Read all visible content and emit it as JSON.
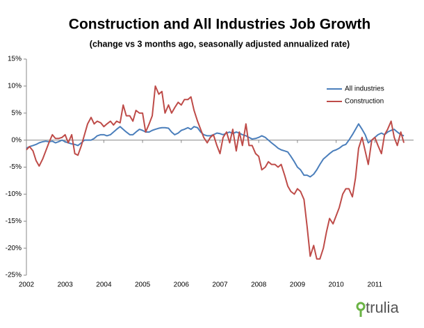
{
  "chart_data": {
    "type": "line",
    "title": "Construction and All Industries Job Growth",
    "subtitle": "(change vs 3 months ago, seasonally adjusted annualized rate)",
    "logo": "trulia",
    "x": [
      2002,
      2002.08,
      2002.17,
      2002.25,
      2002.33,
      2002.42,
      2002.5,
      2002.58,
      2002.67,
      2002.75,
      2002.83,
      2002.92,
      2003,
      2003.08,
      2003.17,
      2003.25,
      2003.33,
      2003.42,
      2003.5,
      2003.58,
      2003.67,
      2003.75,
      2003.83,
      2003.92,
      2004,
      2004.08,
      2004.17,
      2004.25,
      2004.33,
      2004.42,
      2004.5,
      2004.58,
      2004.67,
      2004.75,
      2004.83,
      2004.92,
      2005,
      2005.08,
      2005.17,
      2005.25,
      2005.33,
      2005.42,
      2005.5,
      2005.58,
      2005.67,
      2005.75,
      2005.83,
      2005.92,
      2006,
      2006.08,
      2006.17,
      2006.25,
      2006.33,
      2006.42,
      2006.5,
      2006.58,
      2006.67,
      2006.75,
      2006.83,
      2006.92,
      2007,
      2007.08,
      2007.17,
      2007.25,
      2007.33,
      2007.42,
      2007.5,
      2007.58,
      2007.67,
      2007.75,
      2007.83,
      2007.92,
      2008,
      2008.08,
      2008.17,
      2008.25,
      2008.33,
      2008.42,
      2008.5,
      2008.58,
      2008.67,
      2008.75,
      2008.83,
      2008.92,
      2009,
      2009.08,
      2009.17,
      2009.25,
      2009.33,
      2009.42,
      2009.5,
      2009.58,
      2009.67,
      2009.75,
      2009.83,
      2009.92,
      2010,
      2010.08,
      2010.17,
      2010.25,
      2010.33,
      2010.42,
      2010.5,
      2010.58,
      2010.67,
      2010.75,
      2010.83,
      2010.92,
      2011,
      2011.08,
      2011.17,
      2011.25,
      2011.33,
      2011.42,
      2011.5,
      2011.58,
      2011.67,
      2011.75
    ],
    "series": [
      {
        "name": "All industries",
        "color": "#4a7ebb",
        "values": [
          -1.5,
          -1.2,
          -1,
          -0.8,
          -0.5,
          -0.3,
          -0.2,
          -0.3,
          -0.2,
          -0.5,
          -0.3,
          0,
          -0.3,
          -0.5,
          -0.7,
          -0.8,
          -1,
          -0.5,
          0,
          0,
          0,
          0.3,
          0.8,
          1,
          1,
          0.8,
          1,
          1.5,
          2,
          2.5,
          2,
          1.5,
          1,
          1,
          1.5,
          2,
          1.8,
          1.5,
          1.5,
          1.8,
          2,
          2.2,
          2.3,
          2.3,
          2.2,
          1.5,
          1,
          1.3,
          1.8,
          2,
          2.3,
          2,
          2.5,
          2.3,
          1.5,
          1,
          0.8,
          0.8,
          1,
          1.3,
          1.2,
          1,
          1.3,
          1.5,
          1.2,
          1.5,
          1.3,
          1,
          0.8,
          0.5,
          0.2,
          0.3,
          0.5,
          0.8,
          0.5,
          0,
          -0.5,
          -1,
          -1.5,
          -1.8,
          -2,
          -2.2,
          -3,
          -4,
          -5,
          -5.5,
          -6.5,
          -6.5,
          -6.8,
          -6.3,
          -5.5,
          -4.5,
          -3.5,
          -3,
          -2.5,
          -2,
          -1.8,
          -1.5,
          -1,
          -0.8,
          0,
          1,
          2,
          3,
          2,
          1,
          -0.5,
          0,
          0.5,
          1,
          1.3,
          1,
          1.5,
          1.8,
          2,
          1.5,
          1,
          0.8
        ]
      },
      {
        "name": "Construction",
        "color": "#be4b48",
        "values": [
          -1.8,
          -1.2,
          -2,
          -3.8,
          -4.8,
          -3.5,
          -2,
          -0.5,
          1,
          0.3,
          0.3,
          0.5,
          1,
          -0.5,
          1,
          -2.5,
          -2.8,
          -1,
          1,
          3,
          4.2,
          3,
          3.5,
          3.2,
          2.5,
          3,
          3.5,
          2.8,
          3.5,
          3.2,
          6.5,
          4.5,
          4.5,
          3.5,
          5.5,
          5,
          5,
          1.5,
          3,
          4.5,
          10,
          8.5,
          9,
          5,
          6.5,
          5,
          6,
          7,
          6.5,
          7.5,
          7.5,
          8,
          5.5,
          3.5,
          2,
          0.5,
          -0.5,
          0.5,
          1,
          -1,
          -2.5,
          0.5,
          1.5,
          -0.5,
          2,
          -2,
          1.5,
          -1,
          3,
          -1,
          -1,
          -2.5,
          -3,
          -5.5,
          -5,
          -4,
          -4.5,
          -4.5,
          -5,
          -4.5,
          -6.5,
          -8.5,
          -9.5,
          -10,
          -9,
          -9.5,
          -11,
          -16,
          -21.5,
          -19.5,
          -22,
          -22,
          -20,
          -17,
          -14.5,
          -15.5,
          -14,
          -12.5,
          -10,
          -9,
          -9,
          -10.5,
          -7,
          -1.5,
          0.5,
          -2,
          -4.5,
          0,
          0.5,
          -1,
          -2.5,
          1,
          2,
          3.5,
          0.5,
          -1,
          1.5,
          -0.5
        ]
      }
    ],
    "xlim": [
      2002,
      2012
    ],
    "xticks": [
      2002,
      2003,
      2004,
      2005,
      2006,
      2007,
      2008,
      2009,
      2010,
      2011
    ],
    "ylim": [
      -25,
      15
    ],
    "yticks": [
      {
        "value": -25,
        "label": "-25%"
      },
      {
        "value": -20,
        "label": "-20%"
      },
      {
        "value": -15,
        "label": "-15%"
      },
      {
        "value": -10,
        "label": "-10%"
      },
      {
        "value": -5,
        "label": "-5%"
      },
      {
        "value": 0,
        "label": "0%"
      },
      {
        "value": 5,
        "label": "5%"
      },
      {
        "value": 10,
        "label": "10%"
      },
      {
        "value": 15,
        "label": "15%"
      }
    ],
    "legend": "top-right"
  }
}
